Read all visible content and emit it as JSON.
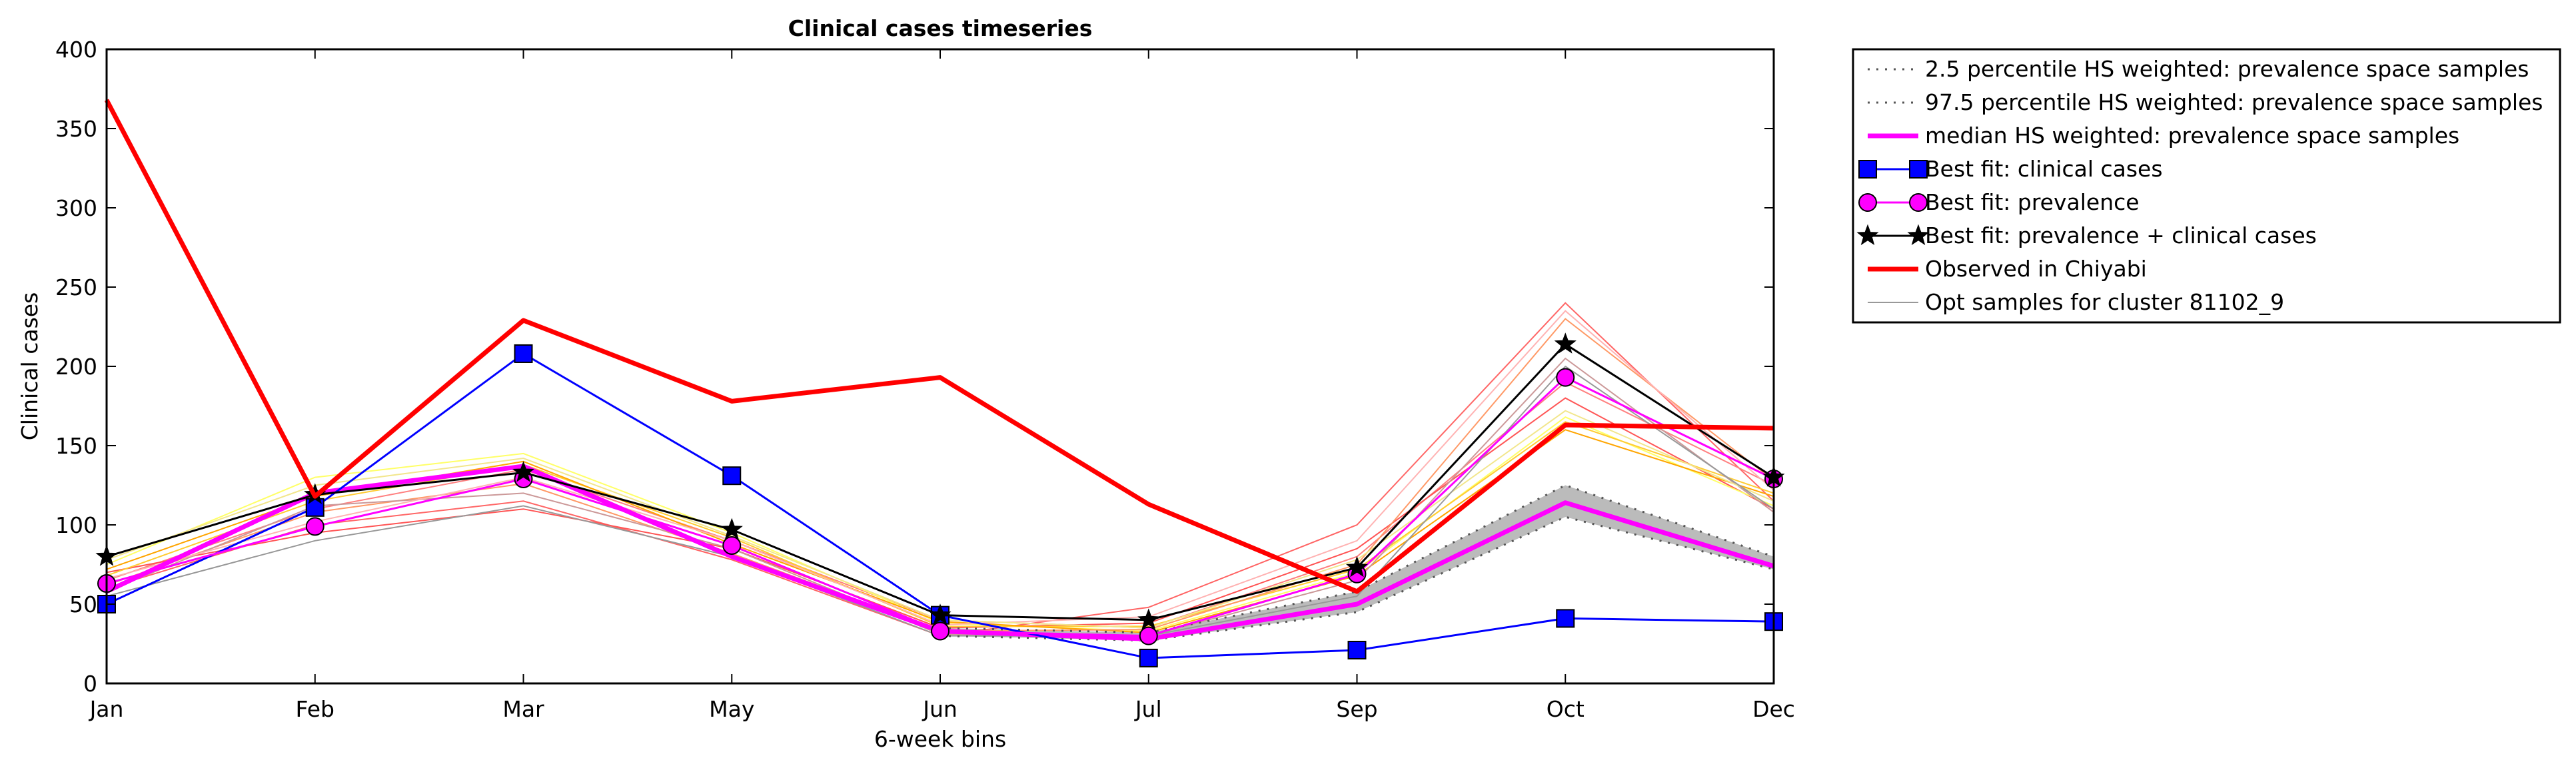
{
  "chart_data": {
    "type": "line",
    "title": "Clinical cases timeseries",
    "xlabel": "6-week bins",
    "ylabel": "Clinical cases",
    "categories": [
      "Jan",
      "Feb",
      "Mar",
      "May",
      "Jun",
      "Jul",
      "Sep",
      "Oct",
      "Dec"
    ],
    "ylim": [
      0,
      400
    ],
    "yticks": [
      "0",
      "50",
      "100",
      "150",
      "200",
      "250",
      "300",
      "350",
      "400"
    ],
    "grid": false,
    "legend_position": "outside-top-right",
    "band": {
      "lower": [
        null,
        null,
        null,
        null,
        30,
        27,
        45,
        105,
        72
      ],
      "upper": [
        null,
        null,
        null,
        null,
        35,
        32,
        58,
        125,
        80
      ],
      "color": "#bbbbbb"
    },
    "series": [
      {
        "name": "2.5 percentile HS weighted: prevalence space samples",
        "style": "dotted",
        "color": "#555555",
        "values": [
          null,
          null,
          null,
          null,
          30,
          27,
          45,
          105,
          72
        ]
      },
      {
        "name": "97.5 percentile HS weighted: prevalence space samples",
        "style": "dotted",
        "color": "#555555",
        "values": [
          null,
          null,
          null,
          null,
          35,
          32,
          58,
          125,
          80
        ]
      },
      {
        "name": "median HS weighted: prevalence space samples",
        "style": "thick",
        "color": "#ff00ff",
        "values": [
          58,
          120,
          137,
          80,
          33,
          28,
          50,
          114,
          74
        ]
      },
      {
        "name": "Best fit: clinical cases",
        "marker": "square",
        "color": "#0000ff",
        "values": [
          50,
          111,
          208,
          131,
          43,
          16,
          21,
          41,
          39
        ]
      },
      {
        "name": "Best fit: prevalence",
        "marker": "circle",
        "color": "#ff00ff",
        "values": [
          63,
          99,
          129,
          87,
          33,
          30,
          69,
          193,
          129
        ]
      },
      {
        "name": "Best fit: prevalence + clinical cases",
        "marker": "star",
        "color": "#000000",
        "values": [
          80,
          119,
          133,
          97,
          43,
          40,
          73,
          214,
          130
        ]
      },
      {
        "name": "Observed in Chiyabi",
        "style": "thick",
        "color": "#ff0000",
        "values": [
          368,
          118,
          229,
          178,
          193,
          113,
          58,
          163,
          161
        ]
      },
      {
        "name": "Opt samples for cluster 81102_9",
        "style": "thin",
        "color": "#999999",
        "values": [
          55,
          90,
          112,
          80,
          30,
          30,
          55,
          200,
          110
        ]
      }
    ],
    "sample_lines": [
      {
        "color": "#ff6666",
        "values": [
          60,
          100,
          115,
          78,
          30,
          48,
          100,
          240,
          115
        ]
      },
      {
        "color": "#ff8080",
        "values": [
          65,
          110,
          135,
          90,
          40,
          35,
          80,
          190,
          125
        ]
      },
      {
        "color": "#ff5555",
        "values": [
          70,
          95,
          110,
          85,
          35,
          38,
          85,
          180,
          110
        ]
      },
      {
        "color": "#ffff66",
        "values": [
          75,
          130,
          145,
          95,
          38,
          33,
          70,
          168,
          112
        ]
      },
      {
        "color": "#ffcc33",
        "values": [
          68,
          115,
          138,
          92,
          36,
          36,
          72,
          165,
          120
        ]
      },
      {
        "color": "#ffa500",
        "values": [
          72,
          118,
          140,
          88,
          39,
          32,
          68,
          160,
          118
        ]
      },
      {
        "color": "#ff9966",
        "values": [
          62,
          108,
          126,
          82,
          33,
          34,
          75,
          230,
          128
        ]
      },
      {
        "color": "#cc9999",
        "values": [
          58,
          112,
          120,
          85,
          31,
          30,
          65,
          205,
          108
        ]
      },
      {
        "color": "#ffb3b3",
        "values": [
          66,
          102,
          130,
          90,
          37,
          42,
          90,
          235,
          122
        ]
      },
      {
        "color": "#f2e68c",
        "values": [
          78,
          125,
          142,
          93,
          40,
          35,
          78,
          172,
          115
        ]
      }
    ]
  }
}
